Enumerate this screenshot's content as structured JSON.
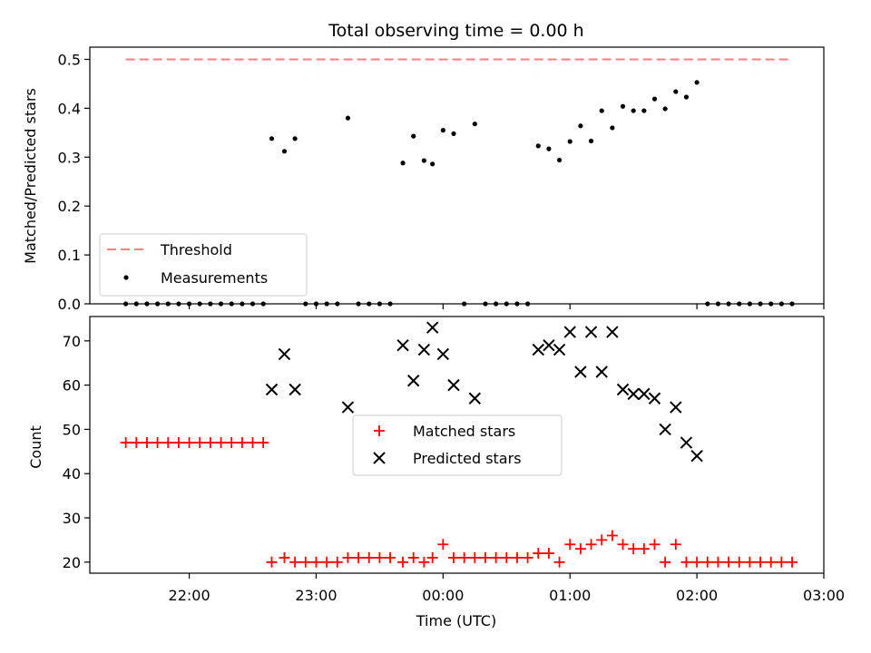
{
  "chart_data": [
    {
      "type": "scatter",
      "title": "Total observing time = 0.00 h",
      "xlabel": "",
      "ylabel": "Matched/Predicted stars",
      "xlim": [
        "21:13",
        "03:00"
      ],
      "ylim": [
        0,
        0.525
      ],
      "yticks": [
        "0.0",
        "0.1",
        "0.2",
        "0.3",
        "0.4",
        "0.5"
      ],
      "grid": false,
      "legend_position": "lower-left",
      "threshold": {
        "name": "Threshold",
        "value": 0.5,
        "x_range": [
          "21:30",
          "02:45"
        ],
        "color": "#ff7f7f"
      },
      "series": [
        {
          "name": "Measurements",
          "color": "#000000",
          "points": [
            [
              "21:30",
              0
            ],
            [
              "21:35",
              0
            ],
            [
              "21:40",
              0
            ],
            [
              "21:45",
              0
            ],
            [
              "21:50",
              0
            ],
            [
              "21:55",
              0
            ],
            [
              "22:00",
              0
            ],
            [
              "22:05",
              0
            ],
            [
              "22:10",
              0
            ],
            [
              "22:15",
              0
            ],
            [
              "22:20",
              0
            ],
            [
              "22:25",
              0
            ],
            [
              "22:30",
              0
            ],
            [
              "22:35",
              0
            ],
            [
              "22:39",
              0.338
            ],
            [
              "22:45",
              0.312
            ],
            [
              "22:50",
              0.338
            ],
            [
              "22:55",
              0
            ],
            [
              "23:00",
              0
            ],
            [
              "23:05",
              0
            ],
            [
              "23:10",
              0
            ],
            [
              "23:15",
              0.38
            ],
            [
              "23:20",
              0
            ],
            [
              "23:25",
              0
            ],
            [
              "23:30",
              0
            ],
            [
              "23:35",
              0
            ],
            [
              "23:41",
              0.288
            ],
            [
              "23:46",
              0.343
            ],
            [
              "23:51",
              0.293
            ],
            [
              "23:55",
              0.286
            ],
            [
              "24:00",
              0.355
            ],
            [
              "24:05",
              0.348
            ],
            [
              "24:10",
              0
            ],
            [
              "24:15",
              0.368
            ],
            [
              "24:20",
              0
            ],
            [
              "24:25",
              0
            ],
            [
              "24:30",
              0
            ],
            [
              "24:35",
              0
            ],
            [
              "24:40",
              0
            ],
            [
              "24:45",
              0.323
            ],
            [
              "24:50",
              0.317
            ],
            [
              "24:55",
              0.294
            ],
            [
              "25:00",
              0.332
            ],
            [
              "25:05",
              0.364
            ],
            [
              "25:10",
              0.333
            ],
            [
              "25:15",
              0.395
            ],
            [
              "25:20",
              0.36
            ],
            [
              "25:25",
              0.404
            ],
            [
              "25:30",
              0.395
            ],
            [
              "25:35",
              0.395
            ],
            [
              "25:40",
              0.419
            ],
            [
              "25:45",
              0.399
            ],
            [
              "25:50",
              0.434
            ],
            [
              "25:55",
              0.423
            ],
            [
              "26:00",
              0.453
            ],
            [
              "26:05",
              0
            ],
            [
              "26:10",
              0
            ],
            [
              "26:15",
              0
            ],
            [
              "26:20",
              0
            ],
            [
              "26:25",
              0
            ],
            [
              "26:30",
              0
            ],
            [
              "26:35",
              0
            ],
            [
              "26:40",
              0
            ],
            [
              "26:45",
              0
            ]
          ]
        }
      ]
    },
    {
      "type": "scatter",
      "title": "",
      "xlabel": "Time (UTC)",
      "ylabel": "Count",
      "xlim": [
        "21:13",
        "03:00"
      ],
      "ylim": [
        17.5,
        75.5
      ],
      "yticks": [
        "20",
        "30",
        "40",
        "50",
        "60",
        "70"
      ],
      "xticks": [
        "22:00",
        "23:00",
        "00:00",
        "01:00",
        "02:00",
        "03:00"
      ],
      "grid": false,
      "legend_position": "center",
      "series": [
        {
          "name": "Matched stars",
          "marker": "plus",
          "color": "#ff0000",
          "points": [
            [
              "21:30",
              47
            ],
            [
              "21:35",
              47
            ],
            [
              "21:40",
              47
            ],
            [
              "21:45",
              47
            ],
            [
              "21:50",
              47
            ],
            [
              "21:55",
              47
            ],
            [
              "22:00",
              47
            ],
            [
              "22:05",
              47
            ],
            [
              "22:10",
              47
            ],
            [
              "22:15",
              47
            ],
            [
              "22:20",
              47
            ],
            [
              "22:25",
              47
            ],
            [
              "22:30",
              47
            ],
            [
              "22:35",
              47
            ],
            [
              "22:39",
              20
            ],
            [
              "22:45",
              21
            ],
            [
              "22:50",
              20
            ],
            [
              "22:55",
              20
            ],
            [
              "23:00",
              20
            ],
            [
              "23:05",
              20
            ],
            [
              "23:10",
              20
            ],
            [
              "23:15",
              21
            ],
            [
              "23:20",
              21
            ],
            [
              "23:25",
              21
            ],
            [
              "23:30",
              21
            ],
            [
              "23:35",
              21
            ],
            [
              "23:41",
              20
            ],
            [
              "23:46",
              21
            ],
            [
              "23:51",
              20
            ],
            [
              "23:55",
              21
            ],
            [
              "24:00",
              24
            ],
            [
              "24:05",
              21
            ],
            [
              "24:10",
              21
            ],
            [
              "24:15",
              21
            ],
            [
              "24:20",
              21
            ],
            [
              "24:25",
              21
            ],
            [
              "24:30",
              21
            ],
            [
              "24:35",
              21
            ],
            [
              "24:40",
              21
            ],
            [
              "24:45",
              22
            ],
            [
              "24:50",
              22
            ],
            [
              "24:55",
              20
            ],
            [
              "25:00",
              24
            ],
            [
              "25:05",
              23
            ],
            [
              "25:10",
              24
            ],
            [
              "25:15",
              25
            ],
            [
              "25:20",
              26
            ],
            [
              "25:25",
              24
            ],
            [
              "25:30",
              23
            ],
            [
              "25:35",
              23
            ],
            [
              "25:40",
              24
            ],
            [
              "25:45",
              20
            ],
            [
              "25:50",
              24
            ],
            [
              "25:55",
              20
            ],
            [
              "26:00",
              20
            ],
            [
              "26:05",
              20
            ],
            [
              "26:10",
              20
            ],
            [
              "26:15",
              20
            ],
            [
              "26:20",
              20
            ],
            [
              "26:25",
              20
            ],
            [
              "26:30",
              20
            ],
            [
              "26:35",
              20
            ],
            [
              "26:40",
              20
            ],
            [
              "26:45",
              20
            ]
          ]
        },
        {
          "name": "Predicted stars",
          "marker": "x",
          "color": "#000000",
          "points": [
            [
              "22:39",
              59
            ],
            [
              "22:45",
              67
            ],
            [
              "22:50",
              59
            ],
            [
              "23:15",
              55
            ],
            [
              "23:41",
              69
            ],
            [
              "23:46",
              61
            ],
            [
              "23:51",
              68
            ],
            [
              "23:55",
              73
            ],
            [
              "24:00",
              67
            ],
            [
              "24:05",
              60
            ],
            [
              "24:15",
              57
            ],
            [
              "24:45",
              68
            ],
            [
              "24:50",
              69
            ],
            [
              "24:55",
              68
            ],
            [
              "25:00",
              72
            ],
            [
              "25:05",
              63
            ],
            [
              "25:10",
              72
            ],
            [
              "25:15",
              63
            ],
            [
              "25:20",
              72
            ],
            [
              "25:25",
              59
            ],
            [
              "25:30",
              58
            ],
            [
              "25:35",
              58
            ],
            [
              "25:40",
              57
            ],
            [
              "25:45",
              50
            ],
            [
              "25:50",
              55
            ],
            [
              "25:55",
              47
            ],
            [
              "26:00",
              44
            ]
          ]
        }
      ]
    }
  ]
}
